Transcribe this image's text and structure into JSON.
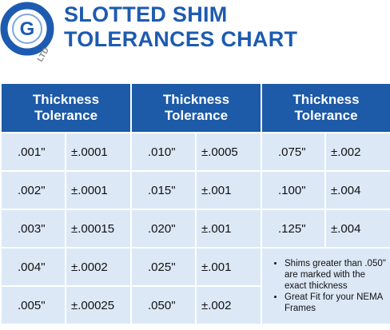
{
  "logo": {
    "letter": "G",
    "sub": "LTD"
  },
  "title": [
    "SLOTTED SHIM",
    "TOLERANCES CHART"
  ],
  "table": {
    "headers": [
      [
        "Thickness",
        "Tolerance"
      ],
      [
        "Thickness",
        "Tolerance"
      ],
      [
        "Thickness",
        "Tolerance"
      ]
    ],
    "rows": [
      [
        ".001\"",
        "±.0001",
        ".010\"",
        "±.0005",
        ".075\"",
        "±.002"
      ],
      [
        ".002\"",
        "±.0001",
        ".015\"",
        "±.001",
        ".100\"",
        "±.004"
      ],
      [
        ".003\"",
        "±.00015",
        ".020\"",
        "±.001",
        ".125\"",
        "±.004"
      ],
      [
        ".004\"",
        "±.0002",
        ".025\"",
        "±.001"
      ],
      [
        ".005\"",
        "±.00025",
        ".050\"",
        "±.002"
      ]
    ],
    "notes": [
      "Shims greater than .050\" are marked with the exact thickness",
      "Great Fit for your NEMA Frames"
    ]
  }
}
